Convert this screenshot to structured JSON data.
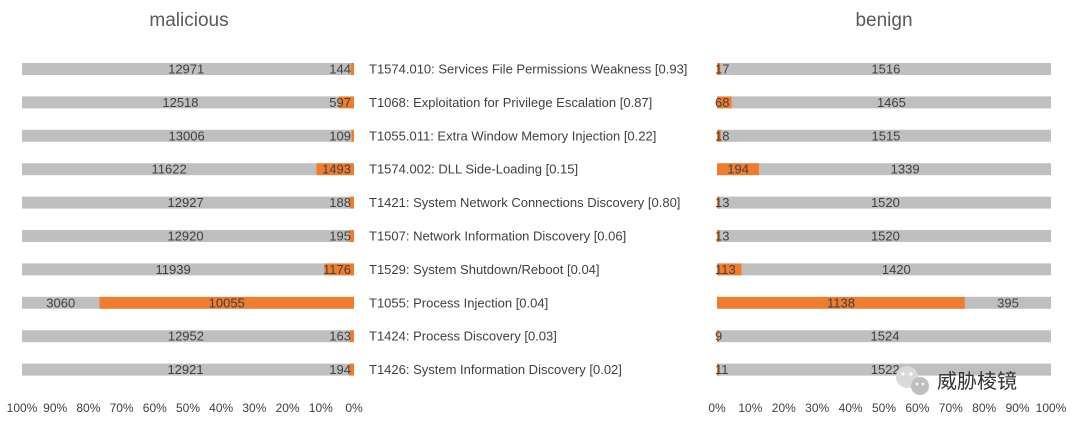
{
  "chart_data": {
    "type": "bar",
    "orientation": "horizontal",
    "stacked": "100%",
    "categories": [
      "T1574.010: Services File Permissions Weakness [0.93]",
      "T1068: Exploitation for Privilege Escalation [0.87]",
      "T1055.011: Extra Window Memory Injection [0.22]",
      "T1574.002: DLL Side-Loading [0.15]",
      "T1421: System Network Connections Discovery [0.80]",
      "T1507: Network Information Discovery [0.06]",
      "T1529: System Shutdown/Reboot [0.04]",
      "T1055: Process Injection [0.04]",
      "T1424: Process Discovery [0.03]",
      "T1426: System Information Discovery [0.02]"
    ],
    "panels": [
      {
        "title": "malicious",
        "direction": "right-to-left",
        "ticks": [
          "100%",
          "90%",
          "80%",
          "70%",
          "60%",
          "50%",
          "40%",
          "30%",
          "20%",
          "10%",
          "0%"
        ],
        "absent": [
          12971,
          12518,
          13006,
          11622,
          12927,
          12920,
          11939,
          3060,
          12952,
          12921
        ],
        "present": [
          144,
          597,
          109,
          1493,
          188,
          195,
          1176,
          10055,
          163,
          194
        ]
      },
      {
        "title": "benign",
        "direction": "left-to-right",
        "ticks": [
          "0%",
          "10%",
          "20%",
          "30%",
          "40%",
          "50%",
          "60%",
          "70%",
          "80%",
          "90%",
          "100%"
        ],
        "present": [
          17,
          68,
          18,
          194,
          13,
          13,
          113,
          1138,
          9,
          11
        ],
        "absent": [
          1516,
          1465,
          1515,
          1339,
          1520,
          1520,
          1420,
          395,
          1524,
          1522
        ]
      }
    ],
    "colors": {
      "present": "#ED7D31",
      "absent": "#BFBFBF"
    },
    "xlim": [
      0,
      100
    ]
  },
  "watermark": {
    "text": "威胁棱镜",
    "icon": "wechat-icon"
  }
}
